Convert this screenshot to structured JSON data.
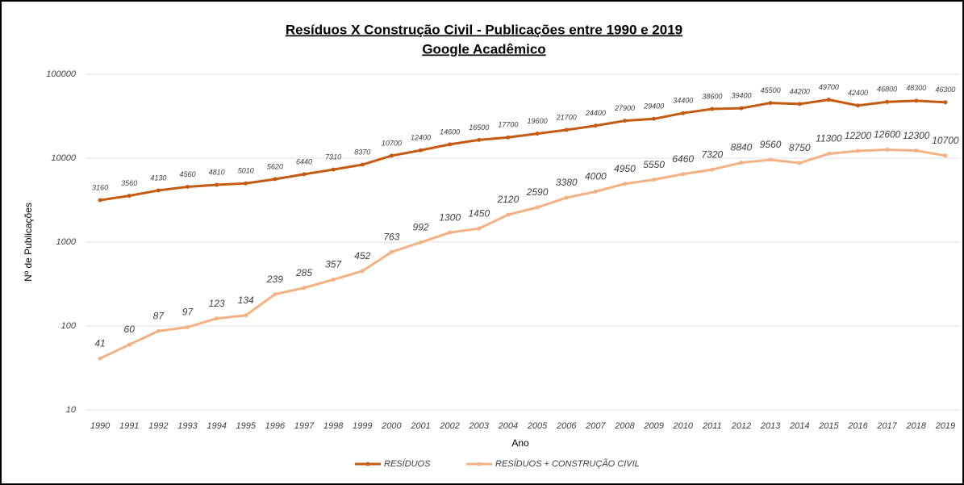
{
  "chart_data": {
    "type": "line",
    "title": "Resíduos X Construção Civil - Publicações entre 1990 e 2019",
    "subtitle": "Google Acadêmico",
    "x_label": "Ano",
    "y_label": "Nº de Publicações",
    "categories": [
      "1990",
      "1991",
      "1992",
      "1993",
      "1994",
      "1995",
      "1996",
      "1997",
      "1998",
      "1999",
      "2000",
      "2001",
      "2002",
      "2003",
      "2004",
      "2005",
      "2006",
      "2007",
      "2008",
      "2009",
      "2010",
      "2011",
      "2012",
      "2013",
      "2014",
      "2015",
      "2016",
      "2017",
      "2018",
      "2019"
    ],
    "series": [
      {
        "name": "RESÍDUOS",
        "color": "#c55a11",
        "values": [
          3160,
          3560,
          4130,
          4560,
          4810,
          5010,
          5620,
          6440,
          7310,
          8370,
          10700,
          12400,
          14600,
          16500,
          17700,
          19600,
          21700,
          24400,
          27900,
          29400,
          34400,
          38600,
          39400,
          45500,
          44200,
          49700,
          42400,
          46800,
          48300,
          46300
        ]
      },
      {
        "name": "RESÍDUOS + CONSTRUÇÃO CIVIL",
        "color": "#f4b183",
        "values": [
          41,
          60,
          87,
          97,
          123,
          134,
          239,
          285,
          357,
          452,
          763,
          992,
          1300,
          1450,
          2120,
          2590,
          3380,
          4000,
          4950,
          5550,
          6460,
          7320,
          8840,
          9560,
          8750,
          11300,
          12200,
          12600,
          12300,
          10700
        ]
      }
    ],
    "ylim": [
      10,
      100000
    ],
    "yticks": [
      10,
      100,
      1000,
      10000,
      100000
    ],
    "log_scale": true,
    "grid": true,
    "legend": "bottom"
  }
}
